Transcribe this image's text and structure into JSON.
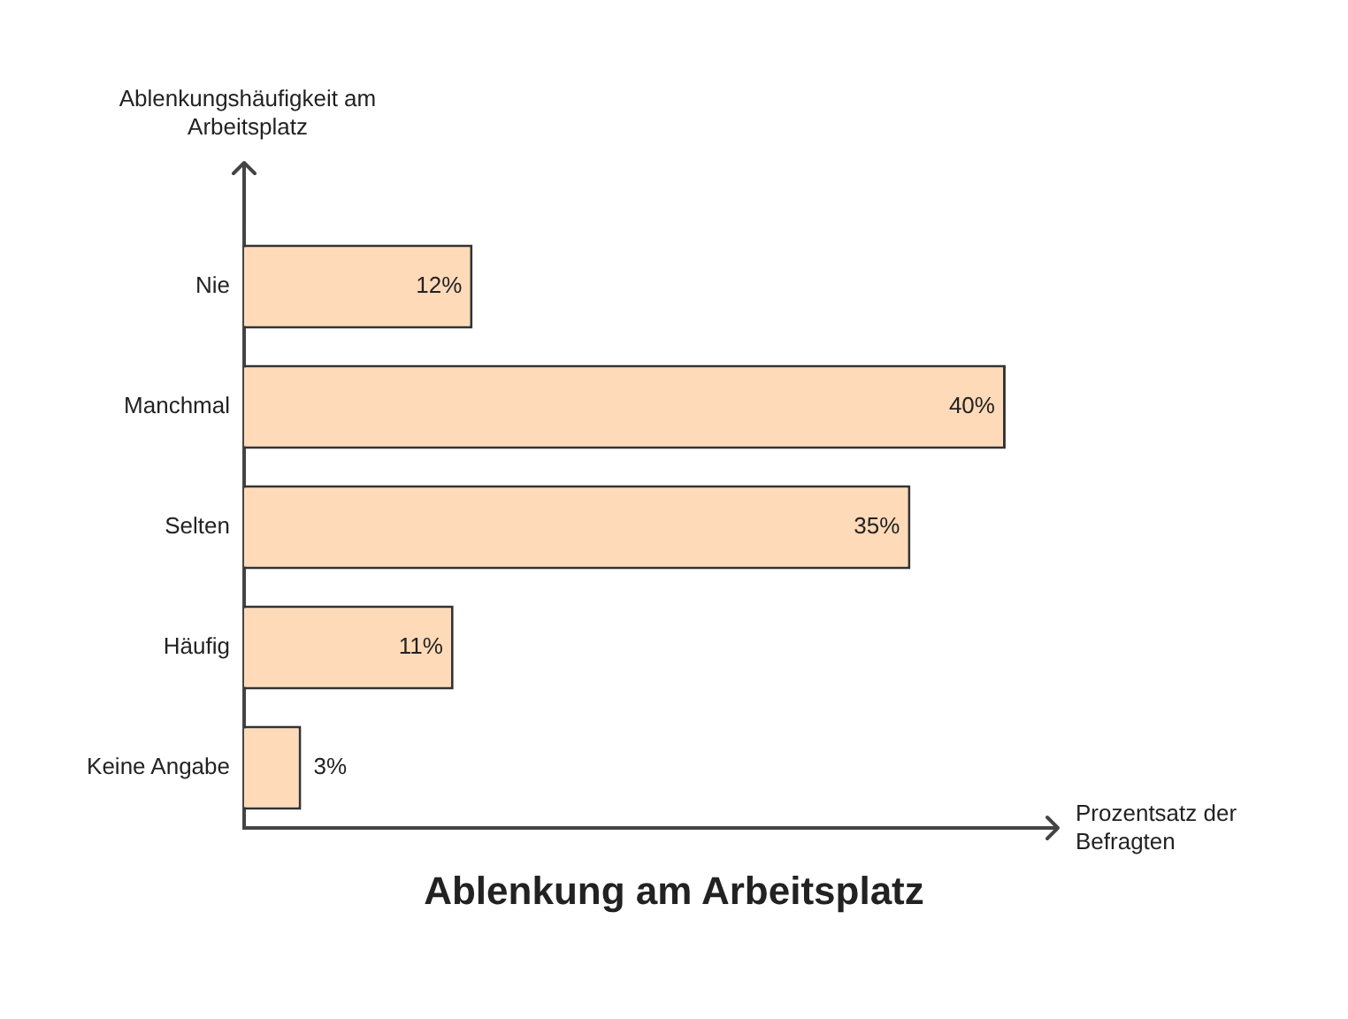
{
  "chart_data": {
    "type": "bar",
    "orientation": "horizontal",
    "title": "Ablenkung am Arbeitsplatz",
    "xlabel": "Prozentsatz der Befragten",
    "ylabel": "Ablenkungshäufigkeit am Arbeitsplatz",
    "categories": [
      "Nie",
      "Manchmal",
      "Selten",
      "Häufig",
      "Keine Angabe"
    ],
    "values": [
      12,
      40,
      35,
      11,
      3
    ],
    "value_labels": [
      "12%",
      "40%",
      "35%",
      "11%",
      "3%"
    ],
    "color": "#ffdab9",
    "xlim": [
      0,
      42
    ],
    "tick_labels": "y",
    "grid": false,
    "legend": false
  }
}
